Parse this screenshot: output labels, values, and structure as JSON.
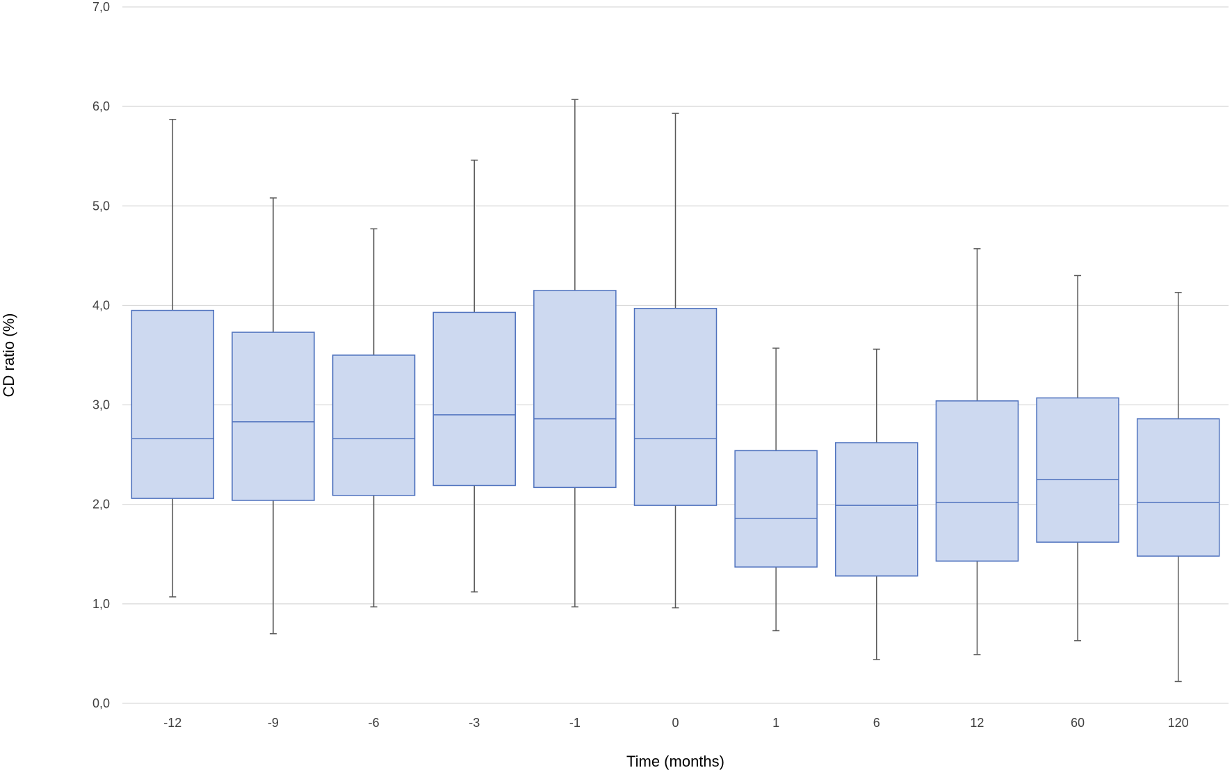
{
  "chart_data": {
    "type": "box",
    "xlabel": "Time (months)",
    "ylabel": "CD ratio (%)",
    "ylim": [
      0,
      7
    ],
    "yticks": [
      "0,0",
      "1,0",
      "2,0",
      "3,0",
      "4,0",
      "5,0",
      "6,0",
      "7,0"
    ],
    "grid": true,
    "categories": [
      "-12",
      "-9",
      "-6",
      "-3",
      "-1",
      "0",
      "1",
      "6",
      "12",
      "60",
      "120"
    ],
    "boxes": [
      {
        "category": "-12",
        "min": 1.07,
        "q1": 2.06,
        "median": 2.66,
        "q3": 3.95,
        "max": 5.87
      },
      {
        "category": "-9",
        "min": 0.7,
        "q1": 2.04,
        "median": 2.83,
        "q3": 3.73,
        "max": 5.08
      },
      {
        "category": "-6",
        "min": 0.97,
        "q1": 2.09,
        "median": 2.66,
        "q3": 3.5,
        "max": 4.77
      },
      {
        "category": "-3",
        "min": 1.12,
        "q1": 2.19,
        "median": 2.9,
        "q3": 3.93,
        "max": 5.46
      },
      {
        "category": "-1",
        "min": 0.97,
        "q1": 2.17,
        "median": 2.86,
        "q3": 4.15,
        "max": 6.07
      },
      {
        "category": "0",
        "min": 0.96,
        "q1": 1.99,
        "median": 2.66,
        "q3": 3.97,
        "max": 5.93
      },
      {
        "category": "1",
        "min": 0.73,
        "q1": 1.37,
        "median": 1.86,
        "q3": 2.54,
        "max": 3.57
      },
      {
        "category": "6",
        "min": 0.44,
        "q1": 1.28,
        "median": 1.99,
        "q3": 2.62,
        "max": 3.56
      },
      {
        "category": "12",
        "min": 0.49,
        "q1": 1.43,
        "median": 2.02,
        "q3": 3.04,
        "max": 4.57
      },
      {
        "category": "60",
        "min": 0.63,
        "q1": 1.62,
        "median": 2.25,
        "q3": 3.07,
        "max": 4.3
      },
      {
        "category": "120",
        "min": 0.22,
        "q1": 1.48,
        "median": 2.02,
        "q3": 2.86,
        "max": 4.13
      }
    ],
    "colors": {
      "box_fill": "#cdd9f0",
      "box_stroke": "#4f72be",
      "whisker": "#595959",
      "grid": "#d9d9d9"
    }
  }
}
